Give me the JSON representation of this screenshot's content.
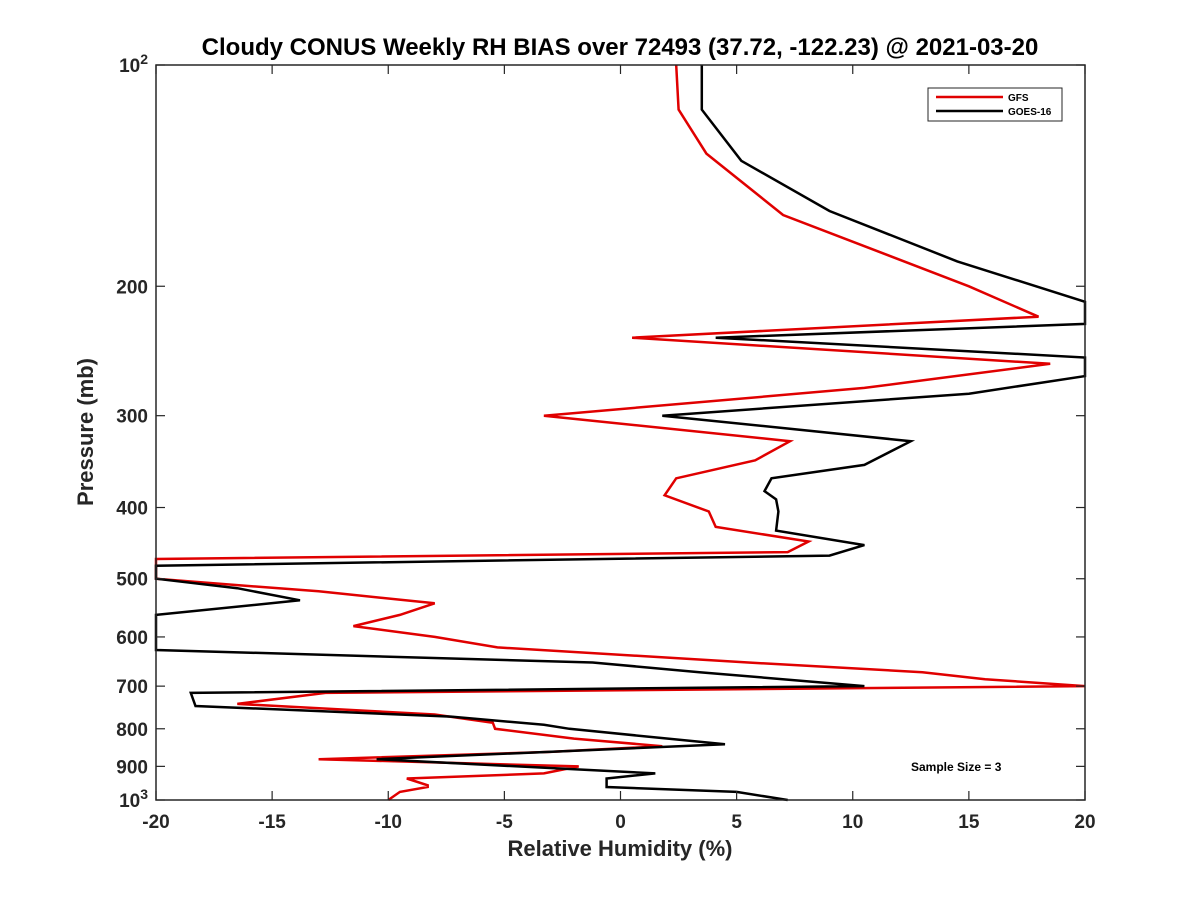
{
  "chart_data": {
    "type": "line",
    "title": "Cloudy CONUS Weekly RH BIAS over 72493 (37.72, -122.23) @ 2021-03-20",
    "xlabel": "Relative Humidity (%)",
    "ylabel": "Pressure (mb)",
    "xlim": [
      -20,
      20
    ],
    "ylim": [
      100,
      1000
    ],
    "y_scale": "log",
    "y_reversed": true,
    "grid": false,
    "legend_position": "top-right",
    "x_ticks": [
      "-20",
      "-15",
      "-10",
      "-5",
      "0",
      "5",
      "10",
      "15",
      "20"
    ],
    "y_ticks": [
      {
        "value": 100,
        "base": "10",
        "exp": "2"
      },
      {
        "value": 200,
        "label": "200"
      },
      {
        "value": 300,
        "label": "300"
      },
      {
        "value": 400,
        "label": "400"
      },
      {
        "value": 500,
        "label": "500"
      },
      {
        "value": 600,
        "label": "600"
      },
      {
        "value": 700,
        "label": "700"
      },
      {
        "value": 800,
        "label": "800"
      },
      {
        "value": 900,
        "label": "900"
      },
      {
        "value": 1000,
        "base": "10",
        "exp": "3"
      }
    ],
    "annotation": "Sample Size = 3",
    "series": [
      {
        "name": "GFS",
        "color": "#e00000",
        "points": [
          [
            2.4,
            100
          ],
          [
            2.5,
            115
          ],
          [
            3.7,
            132
          ],
          [
            7,
            160
          ],
          [
            15,
            200
          ],
          [
            18,
            220
          ],
          [
            0.5,
            235
          ],
          [
            18.5,
            255
          ],
          [
            10.5,
            275
          ],
          [
            -3.3,
            300
          ],
          [
            7.3,
            325
          ],
          [
            5.8,
            345
          ],
          [
            2.4,
            365
          ],
          [
            1.9,
            385
          ],
          [
            3.8,
            405
          ],
          [
            4.1,
            425
          ],
          [
            8.1,
            445
          ],
          [
            7.2,
            460
          ],
          [
            -20,
            470
          ],
          [
            -20,
            500
          ],
          [
            -16.5,
            510
          ],
          [
            -13,
            520
          ],
          [
            -8,
            540
          ],
          [
            -9.5,
            560
          ],
          [
            -11.5,
            580
          ],
          [
            -8,
            600
          ],
          [
            -5.3,
            620
          ],
          [
            5.5,
            650
          ],
          [
            13,
            670
          ],
          [
            15.7,
            685
          ],
          [
            20,
            700
          ],
          [
            -12.7,
            715
          ],
          [
            -16.5,
            740
          ],
          [
            -8,
            765
          ],
          [
            -5.5,
            785
          ],
          [
            -5.4,
            800
          ],
          [
            -2,
            825
          ],
          [
            1.8,
            845
          ],
          [
            -3,
            860
          ],
          [
            -13,
            880
          ],
          [
            -1.8,
            900
          ],
          [
            -3.3,
            920
          ],
          [
            -9.2,
            935
          ],
          [
            -8.3,
            955
          ],
          [
            -8.3,
            960
          ],
          [
            -9.5,
            975
          ],
          [
            -10,
            1000
          ]
        ]
      },
      {
        "name": "GOES-16",
        "color": "#000000",
        "points": [
          [
            3.5,
            100
          ],
          [
            3.5,
            115
          ],
          [
            5.2,
            135
          ],
          [
            9,
            158
          ],
          [
            14.5,
            185
          ],
          [
            20,
            210
          ],
          [
            20,
            225
          ],
          [
            4.1,
            235
          ],
          [
            20,
            250
          ],
          [
            20,
            255
          ],
          [
            20,
            265
          ],
          [
            15,
            280
          ],
          [
            1.8,
            300
          ],
          [
            12.5,
            325
          ],
          [
            10.5,
            350
          ],
          [
            6.5,
            365
          ],
          [
            6.2,
            380
          ],
          [
            6.7,
            390
          ],
          [
            6.8,
            405
          ],
          [
            6.7,
            430
          ],
          [
            10.5,
            450
          ],
          [
            9,
            465
          ],
          [
            -20,
            480
          ],
          [
            -20,
            500
          ],
          [
            -16.5,
            515
          ],
          [
            -13.8,
            535
          ],
          [
            -20,
            560
          ],
          [
            -20,
            625
          ],
          [
            -1.2,
            650
          ],
          [
            3.4,
            670
          ],
          [
            10.5,
            700
          ],
          [
            -18.5,
            715
          ],
          [
            -18.3,
            745
          ],
          [
            -7.3,
            770
          ],
          [
            -3.3,
            790
          ],
          [
            -2.2,
            800
          ],
          [
            4.5,
            840
          ],
          [
            -10.5,
            880
          ],
          [
            1.5,
            920
          ],
          [
            -0.6,
            935
          ],
          [
            -0.6,
            960
          ],
          [
            5,
            975
          ],
          [
            7.2,
            1000
          ]
        ]
      }
    ]
  }
}
